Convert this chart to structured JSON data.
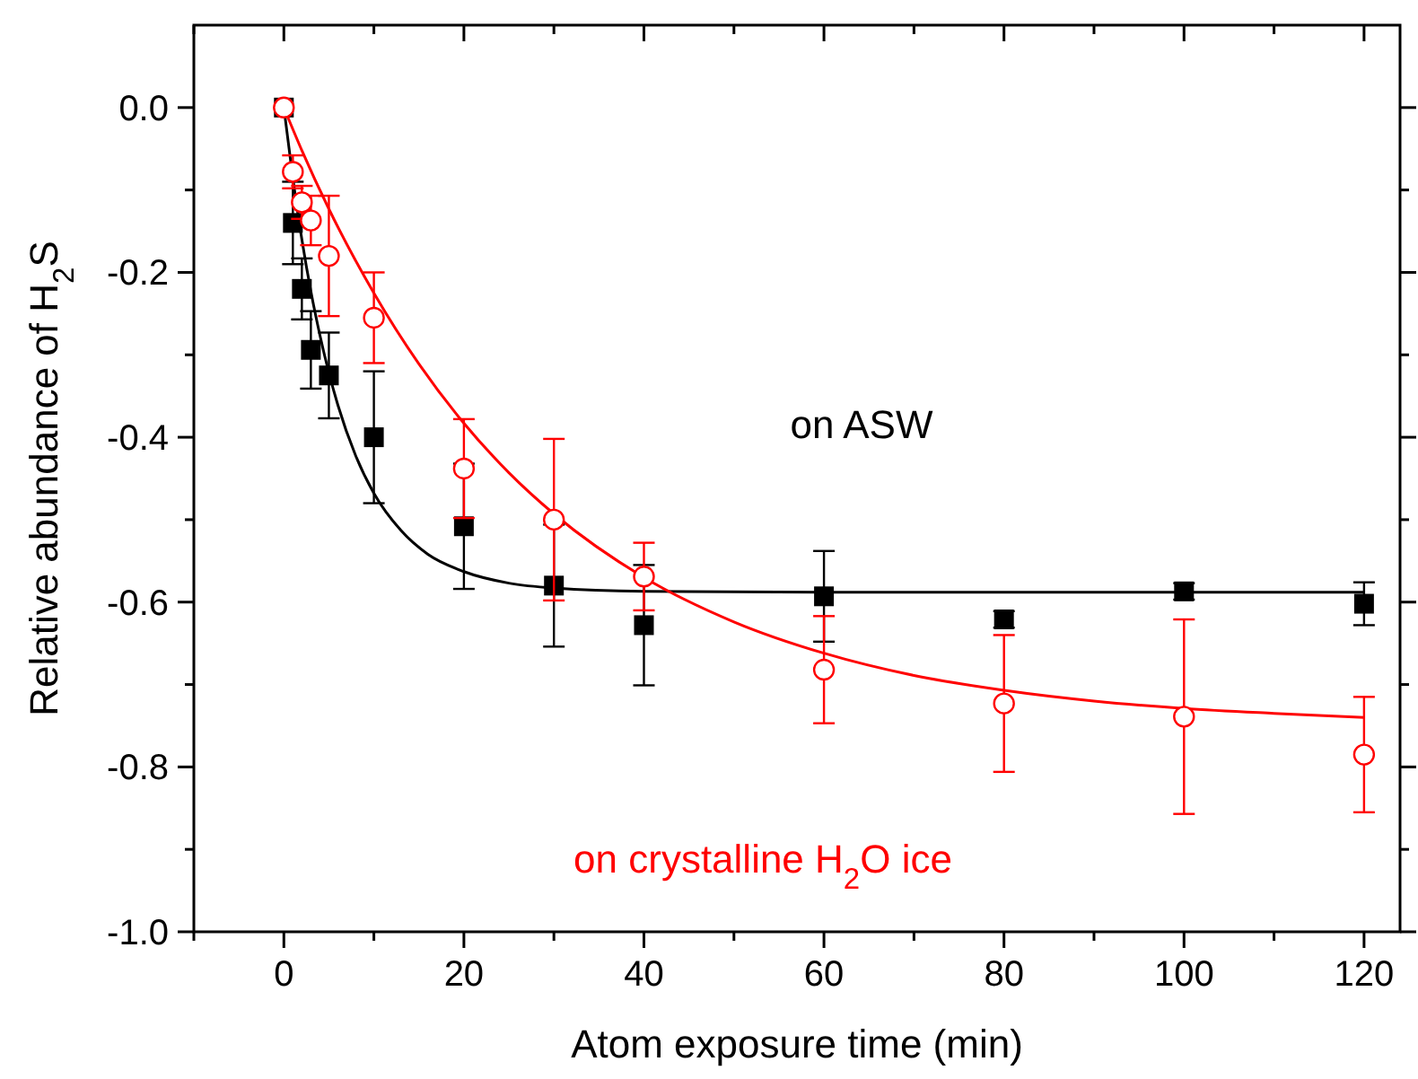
{
  "chart_data": {
    "type": "scatter",
    "xlabel": "Atom exposure time (min)",
    "ylabel": "Relative abundance of H$_{2}$S",
    "x": [
      0,
      1,
      2,
      3,
      5,
      10,
      20,
      30,
      40,
      60,
      80,
      100,
      120
    ],
    "xlim": [
      -10,
      124
    ],
    "ylim": [
      -1.0,
      0.1
    ],
    "xticks": [
      {
        "value": -10,
        "label": null
      },
      0,
      {
        "value": 10,
        "label": null
      },
      20,
      {
        "value": 30,
        "label": null
      },
      40,
      {
        "value": 50,
        "label": null
      },
      60,
      {
        "value": 70,
        "label": null
      },
      80,
      {
        "value": 90,
        "label": null
      },
      100,
      {
        "value": 110,
        "label": null
      },
      120
    ],
    "yticks": [
      {
        "value": -1.0,
        "label": "-1.0"
      },
      {
        "value": -0.9,
        "label": null
      },
      {
        "value": -0.8,
        "label": "-0.8"
      },
      {
        "value": -0.7,
        "label": null
      },
      {
        "value": -0.6,
        "label": "-0.6"
      },
      {
        "value": -0.5,
        "label": null
      },
      {
        "value": -0.4,
        "label": "-0.4"
      },
      {
        "value": -0.3,
        "label": null
      },
      {
        "value": -0.2,
        "label": "-0.2"
      },
      {
        "value": -0.1,
        "label": null
      },
      {
        "value": 0,
        "label": "0.0"
      }
    ],
    "grid": false,
    "series": [
      {
        "type": "line",
        "color": "#000000",
        "marker": "none",
        "x": [
          0,
          1,
          2,
          3,
          4,
          6,
          8,
          10,
          13,
          16,
          20,
          25,
          30,
          40,
          60,
          80,
          100,
          120
        ],
        "values": [
          0,
          -0.086,
          -0.16,
          -0.223,
          -0.276,
          -0.361,
          -0.423,
          -0.468,
          -0.513,
          -0.542,
          -0.563,
          -0.577,
          -0.583,
          -0.587,
          -0.588,
          -0.588,
          -0.588,
          -0.588
        ]
      },
      {
        "type": "line",
        "color": "#ff0000",
        "marker": "none",
        "x": [
          0,
          2,
          5,
          10,
          15,
          20,
          25,
          30,
          40,
          50,
          60,
          70,
          80,
          90,
          100,
          110,
          120
        ],
        "values": [
          0,
          -0.052,
          -0.123,
          -0.225,
          -0.311,
          -0.383,
          -0.443,
          -0.493,
          -0.57,
          -0.624,
          -0.662,
          -0.689,
          -0.707,
          -0.72,
          -0.729,
          -0.735,
          -0.74
        ]
      },
      {
        "name": "on ASW",
        "color": "#000000",
        "marker": "square",
        "values": [
          0,
          -0.14,
          -0.22,
          -0.294,
          -0.325,
          -0.4,
          -0.508,
          -0.58,
          -0.628,
          -0.593,
          -0.621,
          -0.587,
          -0.602
        ],
        "errors": [
          null,
          0.05,
          0.037,
          0.047,
          0.052,
          0.08,
          0.076,
          0.074,
          0.073,
          0.055,
          0.01,
          0.01,
          0.026
        ]
      },
      {
        "name": "on crystalline H$_{2}$O ice",
        "color": "#ff0000",
        "marker": "circle",
        "values": [
          0,
          -0.078,
          -0.115,
          -0.137,
          -0.18,
          -0.255,
          -0.438,
          -0.5,
          -0.569,
          -0.682,
          -0.723,
          -0.739,
          -0.785
        ],
        "errors": [
          null,
          0.02,
          0.02,
          0.03,
          0.073,
          0.055,
          0.06,
          0.098,
          0.041,
          0.065,
          0.083,
          0.118,
          0.07
        ]
      }
    ]
  }
}
